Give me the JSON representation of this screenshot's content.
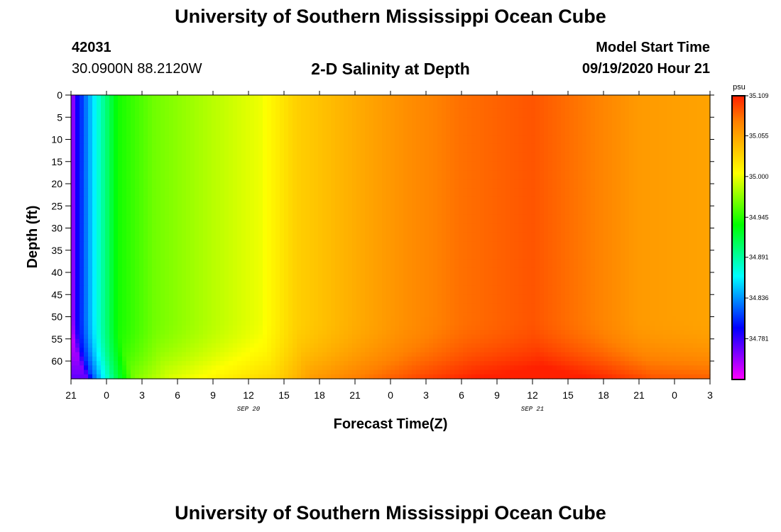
{
  "header": {
    "title": "University of Southern Mississippi Ocean Cube",
    "station_id": "42031",
    "coordinates": "30.0900N 88.2120W",
    "plot_title": "2-D Salinity at Depth",
    "model_start_label": "Model Start Time",
    "model_start_time": "09/19/2020 Hour 21"
  },
  "footer": {
    "title": "University of Southern Mississippi Ocean Cube"
  },
  "chart_data": {
    "type": "heatmap",
    "title": "2-D Salinity at Depth",
    "xlabel": "Forecast Time(Z)",
    "ylabel": "Depth (ft)",
    "x_ticks": [
      "21",
      "0",
      "3",
      "6",
      "9",
      "12",
      "15",
      "18",
      "21",
      "0",
      "3",
      "6",
      "9",
      "12",
      "15",
      "18",
      "21",
      "0",
      "3"
    ],
    "x_range_hours": [
      0,
      54
    ],
    "date_labels": [
      {
        "text": "SEP 20",
        "at_hour": 15
      },
      {
        "text": "SEP 21",
        "at_hour": 39
      }
    ],
    "y_ticks": [
      "0",
      "5",
      "10",
      "15",
      "20",
      "25",
      "30",
      "35",
      "40",
      "45",
      "50",
      "55",
      "60"
    ],
    "y_range_ft": [
      0,
      64
    ],
    "colorbar": {
      "unit": "psu",
      "min": 34.726,
      "max": 35.109,
      "tick_labels": [
        "35.109",
        "35.055",
        "35.000",
        "34.945",
        "34.891",
        "34.836",
        "34.781"
      ],
      "tick_values": [
        35.109,
        35.055,
        35.0,
        34.945,
        34.891,
        34.836,
        34.781
      ],
      "colors": [
        "#ff00ff",
        "#7f00ff",
        "#0000ff",
        "#0080ff",
        "#00ffff",
        "#00ff7f",
        "#00ff00",
        "#80ff00",
        "#ffff00",
        "#ffc000",
        "#ff8000",
        "#ff2000"
      ]
    },
    "profile_hours": [
      0,
      0.5,
      1.5,
      2.5,
      4,
      7,
      12,
      16,
      19,
      24,
      28,
      33,
      39,
      44,
      48,
      54
    ],
    "profile_psu": [
      34.74,
      34.79,
      34.84,
      34.885,
      34.94,
      34.965,
      34.985,
      35.0,
      35.03,
      35.05,
      35.065,
      35.08,
      35.09,
      35.075,
      35.06,
      35.055
    ],
    "bottom_layer": {
      "start_ft": 50,
      "end_ft": 64,
      "max_increase_psu": 0.03
    }
  }
}
